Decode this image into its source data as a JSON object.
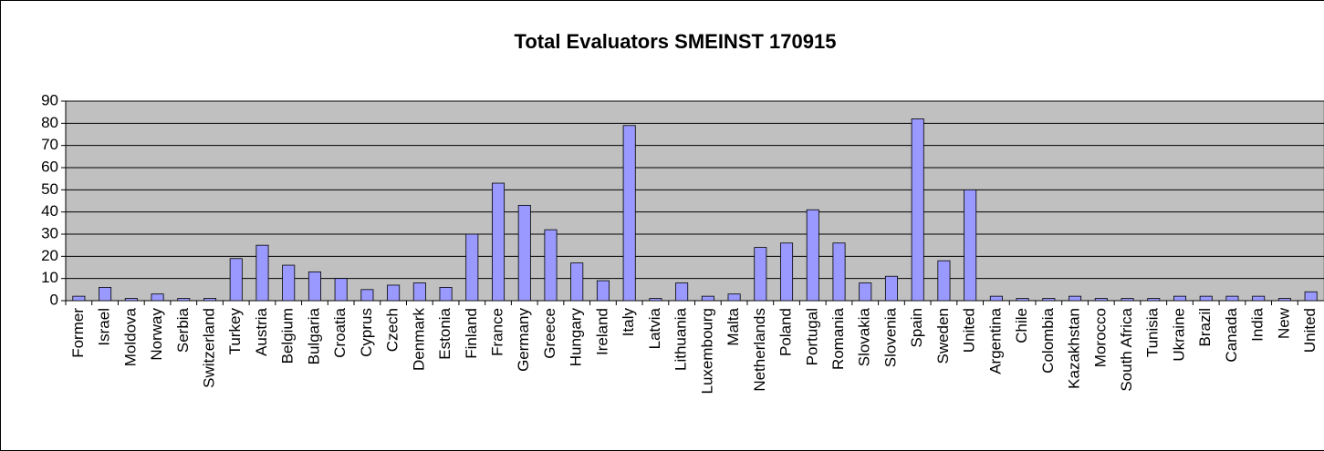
{
  "chart_data": {
    "type": "bar",
    "title": "Total Evaluators SMEINST 170915",
    "categories": [
      "Former",
      "Israel",
      "Moldova",
      "Norway",
      "Serbia",
      "Switzerland",
      "Turkey",
      "Austria",
      "Belgium",
      "Bulgaria",
      "Croatia",
      "Cyprus",
      "Czech",
      "Denmark",
      "Estonia",
      "Finland",
      "France",
      "Germany",
      "Greece",
      "Hungary",
      "Ireland",
      "Italy",
      "Latvia",
      "Lithuania",
      "Luxembourg",
      "Malta",
      "Netherlands",
      "Poland",
      "Portugal",
      "Romania",
      "Slovakia",
      "Slovenia",
      "Spain",
      "Sweden",
      "United",
      "Argentina",
      "Chile",
      "Colombia",
      "Kazakhstan",
      "Morocco",
      "South Africa",
      "Tunisia",
      "Ukraine",
      "Brazil",
      "Canada",
      "India",
      "New",
      "United"
    ],
    "values": [
      2,
      6,
      1,
      3,
      1,
      1,
      19,
      25,
      16,
      13,
      10,
      5,
      7,
      8,
      6,
      30,
      53,
      43,
      32,
      17,
      9,
      79,
      1,
      8,
      2,
      3,
      24,
      26,
      41,
      26,
      8,
      11,
      82,
      18,
      50,
      2,
      1,
      1,
      2,
      1,
      1,
      1,
      2,
      2,
      2,
      2,
      1,
      4
    ],
    "color": "#9999ff",
    "ylim": [
      0,
      90
    ],
    "yticks": [
      0,
      10,
      20,
      30,
      40,
      50,
      60,
      70,
      80,
      90
    ],
    "grid": true
  }
}
